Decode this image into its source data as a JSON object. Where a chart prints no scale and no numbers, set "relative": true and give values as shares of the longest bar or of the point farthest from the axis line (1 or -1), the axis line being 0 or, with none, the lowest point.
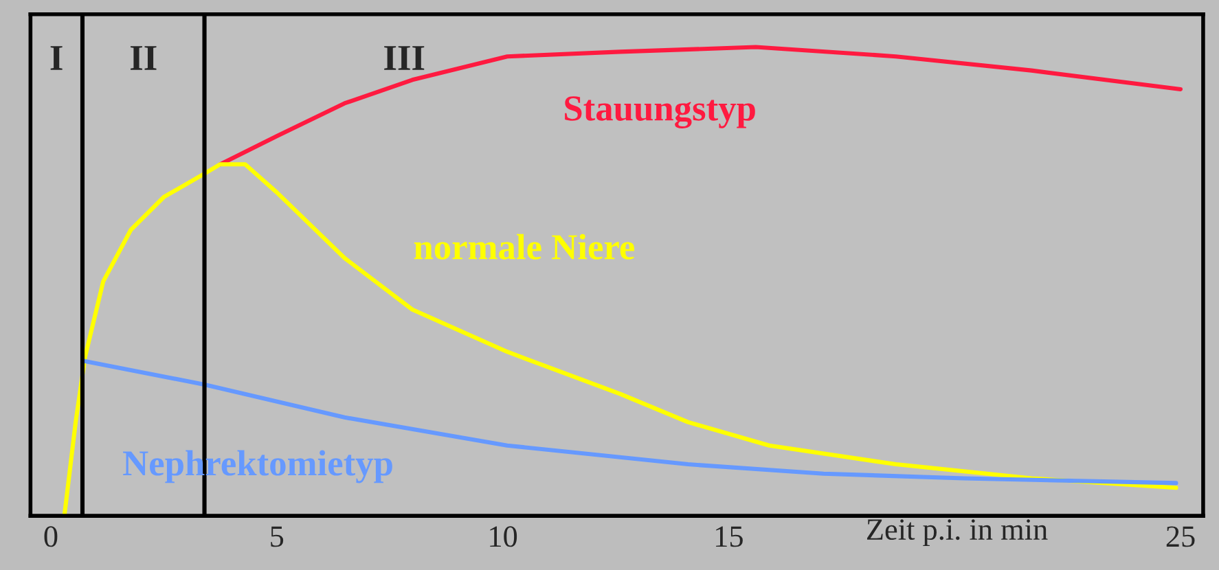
{
  "chart_data": {
    "type": "line",
    "relative": true,
    "xlabel": "Zeit p.i. in min",
    "xlim": [
      -0.45,
      25.5
    ],
    "xticks": [
      0,
      5,
      10,
      15,
      25
    ],
    "grid": false,
    "legend": false,
    "marker": "none",
    "line_style": "solid",
    "series": [
      {
        "name": "Stauungstyp",
        "color": "#ff1a40",
        "x": [
          3.75,
          5,
          6.5,
          8,
          10.1,
          12.6,
          15.6,
          18.7,
          21.7,
          25
        ],
        "values": [
          0.75,
          0.81,
          0.88,
          0.93,
          0.98,
          0.99,
          1.0,
          0.98,
          0.95,
          0.91
        ]
      },
      {
        "name": "normale Niere",
        "color": "#ffff00",
        "x": [
          0.3,
          0.55,
          0.76,
          1.16,
          1.77,
          2.5,
          3.4,
          3.75,
          4.3,
          5,
          6.5,
          8,
          10.1,
          12.6,
          14.1,
          15.9,
          18.7,
          21.7,
          24.9
        ],
        "values": [
          0,
          0.2,
          0.34,
          0.5,
          0.61,
          0.68,
          0.73,
          0.75,
          0.75,
          0.69,
          0.55,
          0.44,
          0.35,
          0.26,
          0.2,
          0.15,
          0.11,
          0.08,
          0.06
        ]
      },
      {
        "name": "Nephrektomietyp",
        "color": "#6699ff",
        "x": [
          0.76,
          3.4,
          6.5,
          10.1,
          14.1,
          17.1,
          20.2,
          24.9
        ],
        "values": [
          0.33,
          0.28,
          0.21,
          0.15,
          0.11,
          0.09,
          0.08,
          0.07
        ]
      }
    ],
    "ref_lines": [
      {
        "axis": "x",
        "value": 0.7,
        "color": "#000000"
      },
      {
        "axis": "x",
        "value": 3.4,
        "color": "#000000"
      }
    ],
    "annotations": [
      "I",
      "II",
      "III"
    ]
  }
}
